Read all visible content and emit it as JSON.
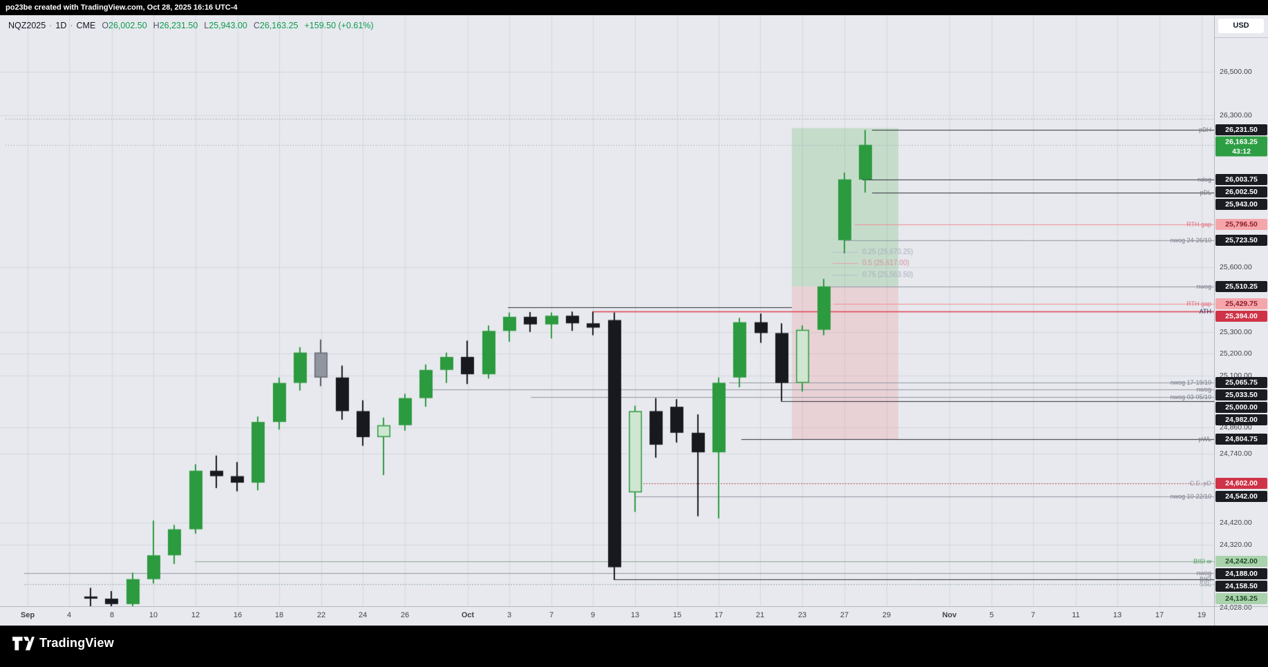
{
  "banner": {
    "text": "po23be created with TradingView.com, Oct 28, 2025 16:16 UTC-4"
  },
  "legend": {
    "symbol": "NQZ2025",
    "separator": "·",
    "interval": "1D",
    "exchange": "CME",
    "open_label": "O",
    "open": "26,002.50",
    "high_label": "H",
    "high": "26,231.50",
    "low_label": "L",
    "low": "25,943.00",
    "close_label": "C",
    "close": "26,163.25",
    "change": "+159.50 (+0.61%)"
  },
  "price_scale": {
    "currency": "USD"
  },
  "footer": {
    "brand": "TradingView"
  },
  "colors": {
    "background": "#e7e9ee",
    "up_candle": "#2c9a3f",
    "down_candle": "#17191e",
    "hollow_candle_fill": "#cfe6d0",
    "gray_candle": "#9195a0",
    "ath_line": "#e03e4d",
    "current_badge": "#2e9e44",
    "grid": "rgba(120,126,140,0.16)"
  },
  "chart_data": {
    "type": "candlestick",
    "symbol": "NQZ2025",
    "interval": "1D",
    "exchange": "CME",
    "ohlc": {
      "open": 26002.5,
      "high": 26231.5,
      "low": 25943.0,
      "close": 26163.25,
      "change": 159.5,
      "change_pct": 0.61
    },
    "countdown": "43:12",
    "ylim": [
      24028,
      26500
    ],
    "candles": [
      [
        "Sep 5",
        24080,
        24120,
        24035,
        24070,
        "down"
      ],
      [
        "Sep 8",
        24070,
        24105,
        24030,
        24045,
        "down"
      ],
      [
        "Sep 9",
        24045,
        24190,
        24030,
        24160,
        "up"
      ],
      [
        "Sep 10",
        24160,
        24430,
        24140,
        24270,
        "up"
      ],
      [
        "Sep 11",
        24270,
        24410,
        24230,
        24390,
        "up"
      ],
      [
        "Sep 12",
        24390,
        24690,
        24370,
        24660,
        "up"
      ],
      [
        "Sep 15",
        24660,
        24730,
        24580,
        24635,
        "down"
      ],
      [
        "Sep 16",
        24635,
        24700,
        24565,
        24605,
        "down"
      ],
      [
        "Sep 17",
        24605,
        24910,
        24570,
        24885,
        "up"
      ],
      [
        "Sep 18",
        24885,
        25090,
        24850,
        25065,
        "up"
      ],
      [
        "Sep 19",
        25065,
        25230,
        25030,
        25205,
        "up"
      ],
      [
        "Sep 22",
        25205,
        25265,
        25050,
        25090,
        "gray"
      ],
      [
        "Sep 23",
        25090,
        25145,
        24895,
        24935,
        "down"
      ],
      [
        "Sep 24",
        24935,
        24985,
        24775,
        24815,
        "down"
      ],
      [
        "Sep 25",
        24815,
        24905,
        24640,
        24870,
        "upHollow"
      ],
      [
        "Sep 26",
        24870,
        25015,
        24845,
        24995,
        "up"
      ],
      [
        "Sep 29",
        24995,
        25150,
        24955,
        25125,
        "up"
      ],
      [
        "Sep 30",
        25125,
        25205,
        25065,
        25185,
        "up"
      ],
      [
        "Oct 1",
        25185,
        25260,
        25060,
        25105,
        "down"
      ],
      [
        "Oct 2",
        25105,
        25330,
        25085,
        25305,
        "up"
      ],
      [
        "Oct 3",
        25305,
        25390,
        25255,
        25370,
        "up"
      ],
      [
        "Oct 6",
        25370,
        25392,
        25300,
        25335,
        "down"
      ],
      [
        "Oct 7",
        25335,
        25390,
        25270,
        25375,
        "up"
      ],
      [
        "Oct 8",
        25375,
        25394,
        25305,
        25340,
        "down"
      ],
      [
        "Oct 9",
        25340,
        25394,
        25285,
        25320,
        "down"
      ],
      [
        "Oct 10",
        25355,
        25390,
        24158.5,
        24215,
        "down"
      ],
      [
        "Oct 13",
        24560,
        24960,
        24470,
        24935,
        "upHollow"
      ],
      [
        "Oct 14",
        24935,
        24995,
        24720,
        24780,
        "down"
      ],
      [
        "Oct 15",
        24955,
        24990,
        24790,
        24835,
        "down"
      ],
      [
        "Oct 16",
        24835,
        24920,
        24450,
        24745,
        "down"
      ],
      [
        "Oct 17",
        24745,
        25090,
        24440,
        25065.75,
        "up"
      ],
      [
        "Oct 20",
        25090,
        25365,
        25045,
        25345,
        "up"
      ],
      [
        "Oct 21",
        25345,
        25385,
        25250,
        25295,
        "down"
      ],
      [
        "Oct 22",
        25295,
        25340,
        24982,
        25065,
        "down"
      ],
      [
        "Oct 23",
        25065,
        25330,
        25025,
        25310,
        "upHollow"
      ],
      [
        "Oct 24",
        25310,
        25545,
        25285,
        25510.25,
        "up"
      ],
      [
        "Oct 27",
        25723.5,
        26035,
        25663,
        26003.75,
        "up"
      ],
      [
        "Oct 28",
        26002.5,
        26231.5,
        25943,
        26163.25,
        "up"
      ]
    ],
    "levels": [
      {
        "label": "pDH",
        "price": 26231.5,
        "from": 1262,
        "color": "#2a2c33"
      },
      {
        "label": "",
        "price": 26283,
        "from": 8,
        "color": "#a7adb9",
        "dash": true
      },
      {
        "label": "ndog",
        "price": 26003.75,
        "from": 1248,
        "color": "#4a4d55",
        "dash": true
      },
      {
        "label": "",
        "price": 26002.5,
        "from": 1248,
        "color": "#2a2c33"
      },
      {
        "label": "pDL",
        "price": 25943,
        "from": 1262,
        "color": "#2a2c33"
      },
      {
        "label": "RTH gap",
        "price": 25796.5,
        "from": 1237,
        "color": "#f28b93",
        "label_color": "#e2707c"
      },
      {
        "label": "nwog 24-26/10",
        "price": 25723.5,
        "from": 1222,
        "color": "#9096a1"
      },
      {
        "label": "nwog",
        "price": 25510.25,
        "from": 1191,
        "color": "#9096a1"
      },
      {
        "label": "RTH gap",
        "price": 25429.75,
        "from": 1206,
        "color": "#f28b93",
        "label_color": "#e2707c"
      },
      {
        "label": "ATH",
        "price": 25394,
        "from": 858,
        "color": "#e03e4d",
        "width": 1.5,
        "label_color": "#2a3160"
      },
      {
        "label": "",
        "price": 25415,
        "from": 735,
        "to": 1146,
        "color": "#2a2c33"
      },
      {
        "label": "nwog 17-19/10",
        "price": 25065.75,
        "from": 1055,
        "color": "#9096a1"
      },
      {
        "label": "nwog",
        "price": 25033.5,
        "from": 616,
        "color": "#9096a1"
      },
      {
        "label": "nwog 03-05/10",
        "price": 25000,
        "from": 768,
        "color": "#9096a1"
      },
      {
        "label": "",
        "price": 24982,
        "from": 1130,
        "color": "#2a2c33"
      },
      {
        "label": "pWL",
        "price": 24804.75,
        "from": 1073,
        "color": "#2a2c33"
      },
      {
        "label": "C.E. pD",
        "price": 24602,
        "from": 919,
        "color": "#b0434e",
        "dash": true,
        "label_color": "#9096a1"
      },
      {
        "label": "nwog 10-22/10",
        "price": 24542,
        "from": 919,
        "color": "#9096a1"
      },
      {
        "label": "BISI w",
        "price": 24242,
        "from": 282,
        "color": "#86a98c",
        "label_color": "#4c9e58"
      },
      {
        "label": "nwog",
        "price": 24188,
        "from": 35,
        "color": "#9096a1"
      },
      {
        "label": "BISI",
        "price": 24158.5,
        "from": 888,
        "color": "#2a2c33"
      },
      {
        "label": "SSL",
        "price": 24136.25,
        "from": 35,
        "color": "#97ab9a",
        "dash": true,
        "label_color": "#9096a1"
      }
    ],
    "quartiles": [
      {
        "label": "0.25 (25,670.25)",
        "price": 25670.25,
        "line_color": "#b7bcc6",
        "text_color": "#a7adb8"
      },
      {
        "label": "0.5 (25,617.00)",
        "price": 25617,
        "line_color": "#e3a1ab",
        "text_color": "#d98f9b"
      },
      {
        "label": "0.75 (25,563.50)",
        "price": 25563.5,
        "line_color": "#b7bcc6",
        "text_color": "#a7adb8"
      }
    ],
    "boxes": [
      {
        "x1": 1146,
        "x2": 1300,
        "p1": 26240,
        "p2": 25510.25,
        "color": "rgba(76,175,80,0.22)"
      },
      {
        "x1": 1146,
        "x2": 1300,
        "p1": 25510.25,
        "p2": 24804.75,
        "color": "rgba(239,83,80,0.15)"
      }
    ],
    "current_price_line": {
      "price": 26163.25,
      "color": "#8c93a3"
    },
    "badges": [
      {
        "text": "26,231.50",
        "price": 26231.5,
        "bg": "#1a1c22",
        "fg": "#ffffff"
      },
      {
        "text": "26,163.25",
        "price": 26163.25,
        "bg": "#2e9e44",
        "fg": "#ffffff",
        "sub": "43:12"
      },
      {
        "text": "26,003.75",
        "price": 26003.75,
        "bg": "#1a1c22",
        "fg": "#ffffff"
      },
      {
        "text": "26,002.50",
        "price": 26002.5,
        "bg": "#1a1c22",
        "fg": "#ffffff"
      },
      {
        "text": "25,943.00",
        "price": 25943,
        "bg": "#1a1c22",
        "fg": "#ffffff"
      },
      {
        "text": "25,796.50",
        "price": 25796.5,
        "bg": "#f5a6ab",
        "fg": "#8e1e2a"
      },
      {
        "text": "25,723.50",
        "price": 25723.5,
        "bg": "#1a1c22",
        "fg": "#ffffff"
      },
      {
        "text": "25,510.25",
        "price": 25510.25,
        "bg": "#1a1c22",
        "fg": "#ffffff"
      },
      {
        "text": "25,429.75",
        "price": 25429.75,
        "bg": "#f5a6ab",
        "fg": "#8e1e2a"
      },
      {
        "text": "25,394.00",
        "price": 25394,
        "bg": "#cf3347",
        "fg": "#ffffff"
      },
      {
        "text": "25,065.75",
        "price": 25065.75,
        "bg": "#1a1c22",
        "fg": "#ffffff"
      },
      {
        "text": "25,033.50",
        "price": 25033.5,
        "bg": "#1a1c22",
        "fg": "#ffffff"
      },
      {
        "text": "25,000.00",
        "price": 25000,
        "bg": "#1a1c22",
        "fg": "#ffffff"
      },
      {
        "text": "24,982.00",
        "price": 24982,
        "bg": "#1a1c22",
        "fg": "#ffffff"
      },
      {
        "text": "24,804.75",
        "price": 24804.75,
        "bg": "#1a1c22",
        "fg": "#ffffff"
      },
      {
        "text": "24,602.00",
        "price": 24602,
        "bg": "#cf3347",
        "fg": "#ffffff"
      },
      {
        "text": "24,542.00",
        "price": 24542,
        "bg": "#1a1c22",
        "fg": "#ffffff"
      },
      {
        "text": "24,242.00",
        "price": 24242,
        "bg": "#a9d2ad",
        "fg": "#1c4e24"
      },
      {
        "text": "24,188.00",
        "price": 24188,
        "bg": "#1a1c22",
        "fg": "#ffffff"
      },
      {
        "text": "24,158.50",
        "price": 24158.5,
        "bg": "#1a1c22",
        "fg": "#ffffff"
      },
      {
        "text": "24,136.25",
        "price": 24136.25,
        "bg": "#a9d2ad",
        "fg": "#1c4e24"
      }
    ],
    "y_ticks": [
      [
        "26,500.00",
        26500
      ],
      [
        "26,300.00",
        26300
      ],
      [
        "25,600.00",
        25600
      ],
      [
        "25,300.00",
        25300
      ],
      [
        "25,200.00",
        25200
      ],
      [
        "25,100.00",
        25100
      ],
      [
        "24,860.00",
        24860
      ],
      [
        "24,740.00",
        24740
      ],
      [
        "24,420.00",
        24420
      ],
      [
        "24,320.00",
        24320
      ],
      [
        "24,028.00",
        24028
      ]
    ],
    "x_ticks": [
      [
        "Sep",
        40
      ],
      [
        "4",
        100
      ],
      [
        "8",
        162
      ],
      [
        "10",
        222
      ],
      [
        "12",
        283
      ],
      [
        "16",
        344
      ],
      [
        "18",
        404
      ],
      [
        "22",
        465
      ],
      [
        "24",
        525
      ],
      [
        "26",
        586
      ],
      [
        "Oct",
        677
      ],
      [
        "3",
        737
      ],
      [
        "7",
        798
      ],
      [
        "9",
        858
      ],
      [
        "13",
        919
      ],
      [
        "15",
        980
      ],
      [
        "17",
        1040
      ],
      [
        "21",
        1100
      ],
      [
        "23",
        1161
      ],
      [
        "27",
        1222
      ],
      [
        "29",
        1283
      ],
      [
        "Nov",
        1374
      ],
      [
        "5",
        1435
      ],
      [
        "7",
        1495
      ],
      [
        "11",
        1557
      ],
      [
        "13",
        1617
      ],
      [
        "17",
        1678
      ],
      [
        "19",
        1739
      ]
    ]
  }
}
